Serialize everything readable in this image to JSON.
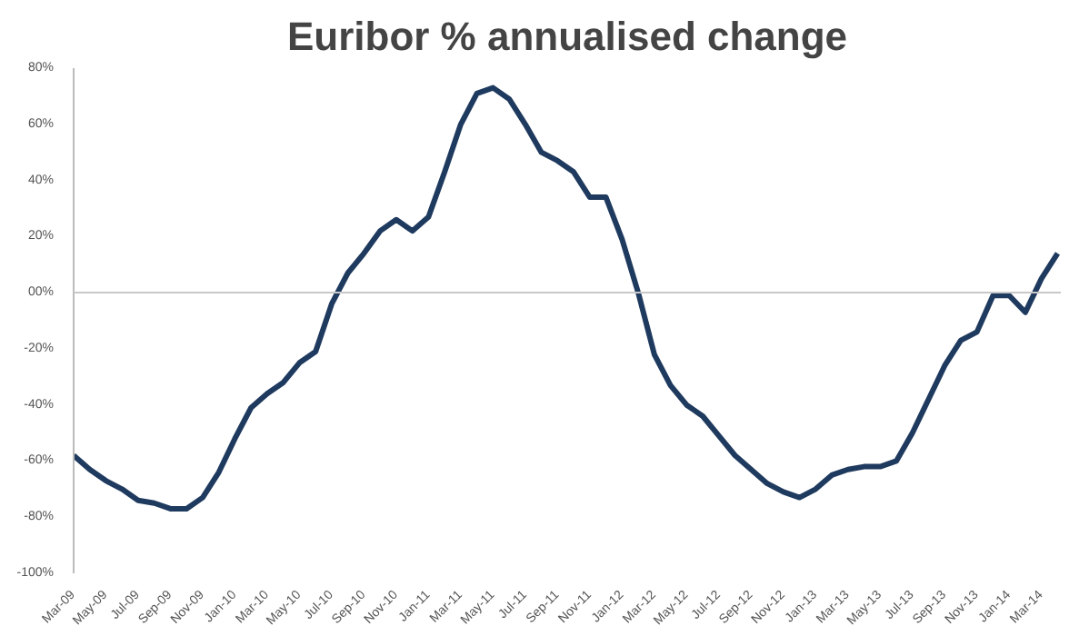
{
  "chart_data": {
    "type": "line",
    "title": "Euribor % annualised change",
    "categories": [
      "Mar-09",
      null,
      "May-09",
      null,
      "Jul-09",
      null,
      "Sep-09",
      null,
      "Nov-09",
      null,
      "Jan-10",
      null,
      "Mar-10",
      null,
      "May-10",
      null,
      "Jul-10",
      null,
      "Sep-10",
      null,
      "Nov-10",
      null,
      "Jan-11",
      null,
      "Mar-11",
      null,
      "May-11",
      null,
      "Jul-11",
      null,
      "Sep-11",
      null,
      "Nov-11",
      null,
      "Jan-12",
      null,
      "Mar-12",
      null,
      "May-12",
      null,
      "Jul-12",
      null,
      "Sep-12",
      null,
      "Nov-12",
      null,
      "Jan-13",
      null,
      "Mar-13",
      null,
      "May-13",
      null,
      "Jul-13",
      null,
      "Sep-13",
      null,
      "Nov-13",
      null,
      "Jan-14",
      null,
      "Mar-14",
      null
    ],
    "series": [
      {
        "color": "#1f3a5f",
        "values": [
          -58,
          -63,
          -67,
          -70,
          -74,
          -75,
          -77,
          -77,
          -73,
          -64,
          -52,
          -41,
          -36,
          -32,
          -25,
          -21,
          -4,
          7,
          14,
          22,
          26,
          22,
          27,
          43,
          60,
          71,
          73,
          69,
          60,
          50,
          47,
          43,
          34,
          34,
          19,
          0,
          -22,
          -33,
          -40,
          -44,
          -51,
          -58,
          -63,
          -68,
          -71,
          -73,
          -70,
          -65,
          -63,
          -62,
          -62,
          -60,
          -50,
          -38,
          -26,
          -17,
          -14,
          -1,
          -1,
          -7,
          5,
          14
        ]
      }
    ],
    "ylim": [
      -100,
      80
    ],
    "yticks": [
      {
        "value": -100,
        "label": "-100%"
      },
      {
        "value": -80,
        "label": "-80%"
      },
      {
        "value": -60,
        "label": "-60%"
      },
      {
        "value": -40,
        "label": "-40%"
      },
      {
        "value": -20,
        "label": "-20%"
      },
      {
        "value": 0,
        "label": "00%"
      },
      {
        "value": 20,
        "label": "20%"
      },
      {
        "value": 40,
        "label": "40%"
      },
      {
        "value": 60,
        "label": "60%"
      },
      {
        "value": 80,
        "label": "80%"
      }
    ],
    "ref_lines": [
      {
        "axis": "y",
        "value": 0,
        "color": "#c8c8c8"
      }
    ],
    "grid": false,
    "marker": "none",
    "line_style": "solid"
  }
}
